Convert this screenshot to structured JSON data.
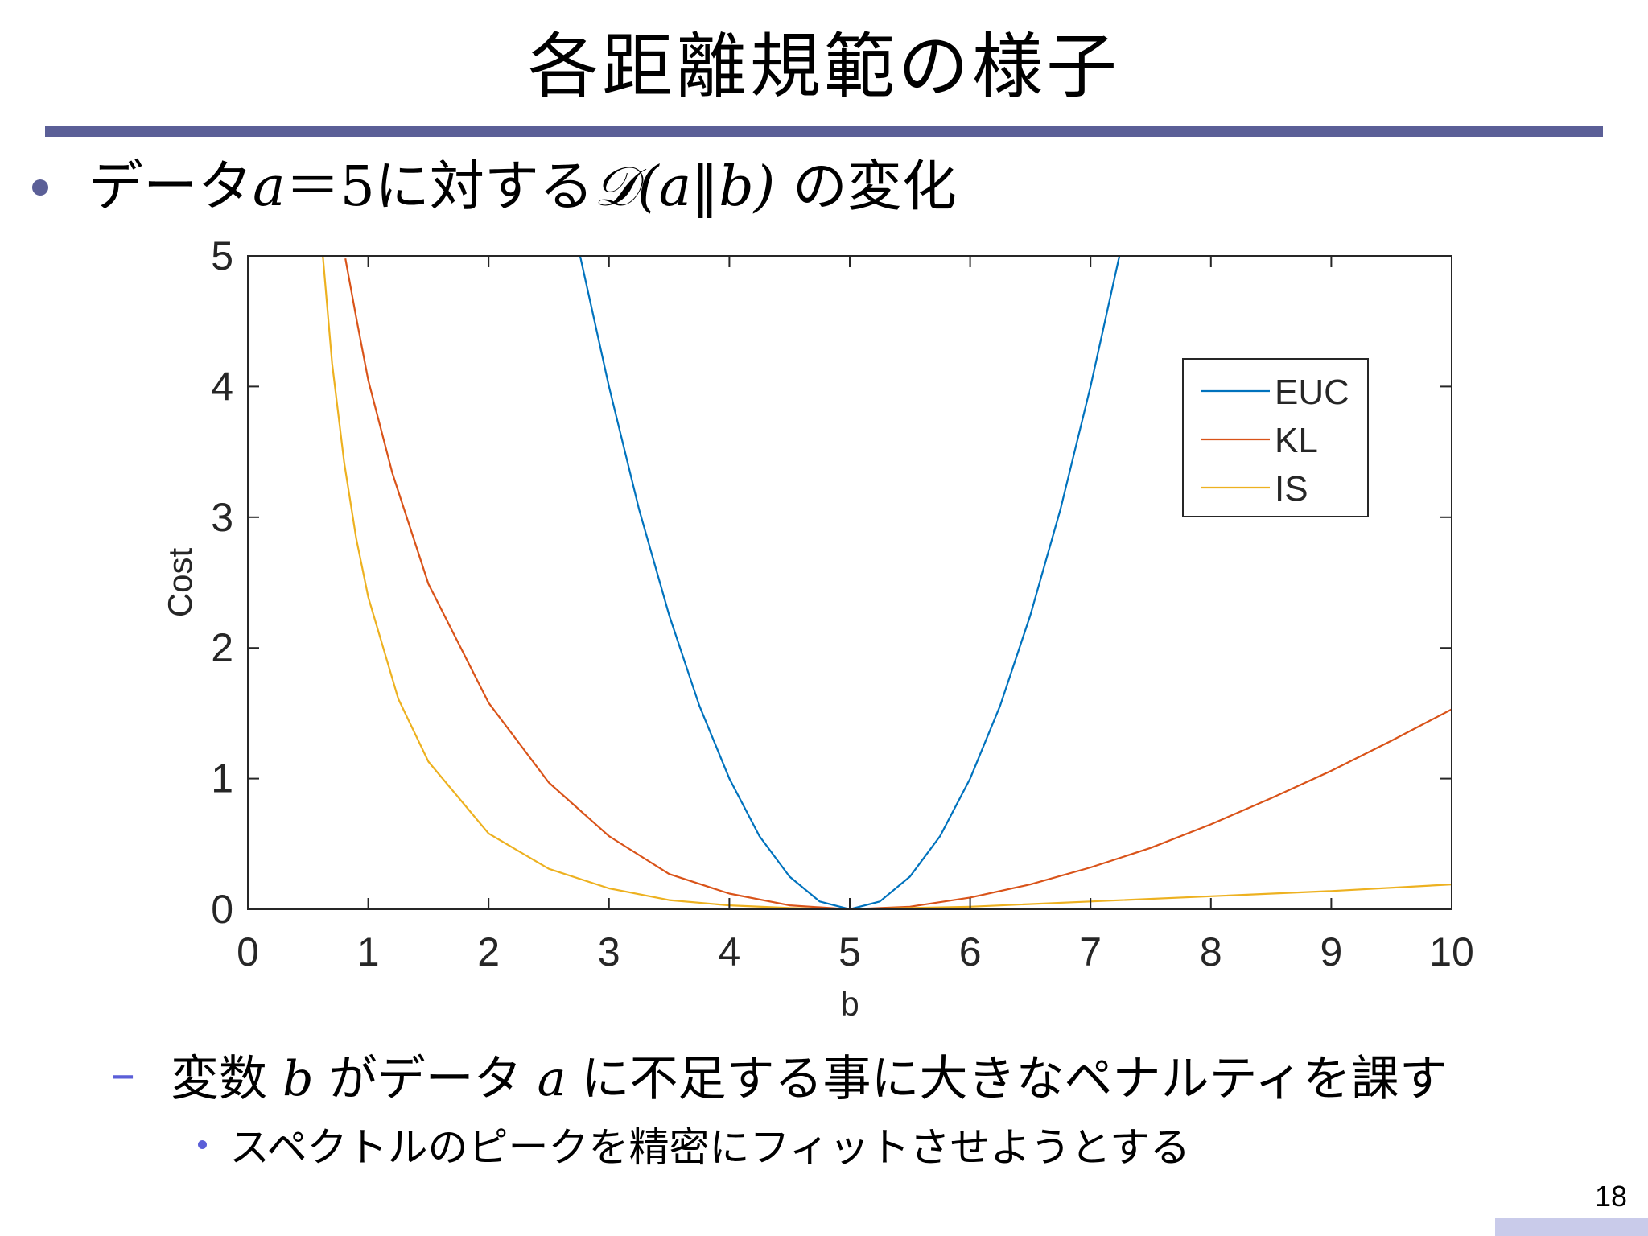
{
  "slide": {
    "title": "各距離規範の様子",
    "bullet": {
      "pre": "データ",
      "var_a": "a",
      "eq": "＝",
      "five": "5",
      "mid": "に対する",
      "expr": "𝒟(a‖b)",
      "post": "の変化"
    },
    "sub_bullet": {
      "dash": "–",
      "pre": "変数",
      "var_b": "b",
      "mid": "がデータ",
      "var_a": "a",
      "post": "に不足する事に大きなペナルティを課す"
    },
    "subsub_bullet": "スペクトルのピークを精密にフィットさせようとする",
    "page_number": "18"
  },
  "chart_data": {
    "type": "line",
    "xlabel": "b",
    "ylabel": "Cost",
    "xlim": [
      0,
      10
    ],
    "ylim": [
      0,
      5
    ],
    "xticks": [
      "0",
      "1",
      "2",
      "3",
      "4",
      "5",
      "6",
      "7",
      "8",
      "9",
      "10"
    ],
    "yticks": [
      "0",
      "1",
      "2",
      "3",
      "4",
      "5"
    ],
    "a": 5,
    "legend_position": "top-right",
    "grid": false,
    "series": [
      {
        "name": "EUC",
        "color": "#0072bd",
        "x": [
          2.76,
          3.0,
          3.25,
          3.5,
          3.75,
          4.0,
          4.25,
          4.5,
          4.75,
          5.0,
          5.25,
          5.5,
          5.75,
          6.0,
          6.25,
          6.5,
          6.75,
          7.0,
          7.24
        ],
        "y": [
          5.0,
          4.0,
          3.06,
          2.25,
          1.56,
          1.0,
          0.56,
          0.25,
          0.06,
          0.0,
          0.06,
          0.25,
          0.56,
          1.0,
          1.56,
          2.25,
          3.06,
          4.0,
          5.0
        ]
      },
      {
        "name": "KL",
        "color": "#d95319",
        "x": [
          0.81,
          0.9,
          1.0,
          1.2,
          1.5,
          2.0,
          2.5,
          3.0,
          3.5,
          4.0,
          4.5,
          5.0,
          5.5,
          6.0,
          6.5,
          7.0,
          7.5,
          8.0,
          8.5,
          9.0,
          9.5,
          10.0
        ],
        "y": [
          4.98,
          4.53,
          4.05,
          3.34,
          2.49,
          1.58,
          0.97,
          0.56,
          0.27,
          0.12,
          0.03,
          0.0,
          0.02,
          0.09,
          0.19,
          0.32,
          0.47,
          0.65,
          0.85,
          1.06,
          1.29,
          1.53
        ]
      },
      {
        "name": "IS",
        "color": "#edb120",
        "x": [
          0.62,
          0.7,
          0.8,
          0.9,
          1.0,
          1.25,
          1.5,
          2.0,
          2.5,
          3.0,
          3.5,
          4.0,
          4.5,
          5.0,
          6.0,
          7.0,
          8.0,
          9.0,
          10.0
        ],
        "y": [
          5.03,
          4.18,
          3.42,
          2.84,
          2.39,
          1.61,
          1.13,
          0.58,
          0.31,
          0.16,
          0.07,
          0.03,
          0.01,
          0.0,
          0.02,
          0.06,
          0.1,
          0.14,
          0.19
        ]
      }
    ]
  }
}
